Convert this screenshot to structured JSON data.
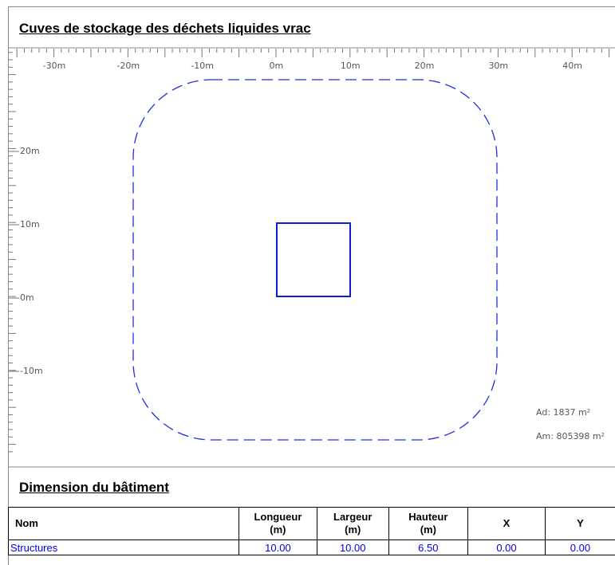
{
  "header": {
    "title": "Cuves de stockage des déchets liquides vrac"
  },
  "map": {
    "x_labels": [
      "-30m",
      "-20m",
      "-10m",
      "0m",
      "10m",
      "20m",
      "30m",
      "40m"
    ],
    "y_labels": [
      "20m",
      "10m",
      "0m",
      "-10m"
    ],
    "annotations": [
      "Ad: 1837 m²",
      "Am: 805398 m²"
    ]
  },
  "section": {
    "title": "Dimension du bâtiment"
  },
  "table": {
    "headers": [
      [
        "Nom"
      ],
      [
        "Longueur",
        "(m)"
      ],
      [
        "Largeur",
        "(m)"
      ],
      [
        "Hauteur",
        "(m)"
      ],
      [
        "X"
      ],
      [
        "Y"
      ]
    ],
    "rows": [
      [
        "Structures",
        "10.00",
        "10.00",
        "6.50",
        "0.00",
        "0.00"
      ]
    ]
  }
}
